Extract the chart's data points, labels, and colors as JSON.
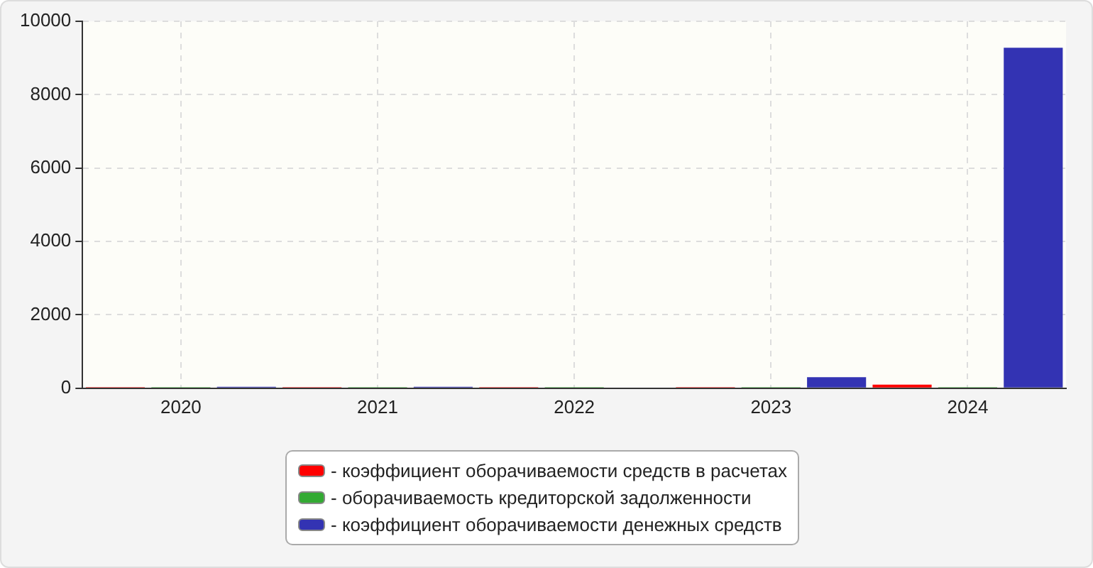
{
  "chart_data": {
    "type": "bar",
    "categories": [
      "2020",
      "2021",
      "2022",
      "2023",
      "2024"
    ],
    "series": [
      {
        "name": "- коэффициент оборачиваемости средств в расчетах",
        "color": "#ff0000",
        "values": [
          30,
          30,
          30,
          30,
          100
        ]
      },
      {
        "name": "- оборачиваемость кредиторской задолженности",
        "color": "#33aa33",
        "values": [
          30,
          30,
          30,
          30,
          30
        ]
      },
      {
        "name": "- коэффициент оборачиваемости денежных средств",
        "color": "#3333b3",
        "values": [
          40,
          40,
          0,
          300,
          9280
        ]
      }
    ],
    "ylim": [
      0,
      10000
    ],
    "yticks": [
      0,
      2000,
      4000,
      6000,
      8000,
      10000
    ],
    "grid": true,
    "legend": "bottom"
  }
}
